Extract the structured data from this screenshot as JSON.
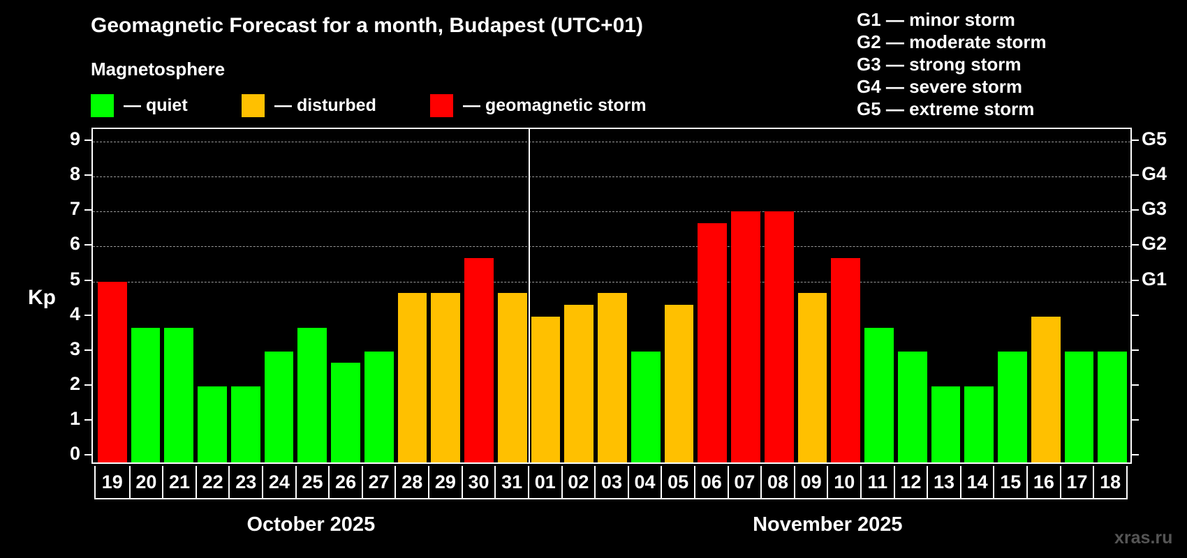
{
  "title": "Geomagnetic Forecast for a month, Budapest (UTC+01)",
  "legend": {
    "heading": "Magnetosphere",
    "items": [
      {
        "label": "— quiet",
        "color": "#00ff00"
      },
      {
        "label": "— disturbed",
        "color": "#ffc000"
      },
      {
        "label": "— geomagnetic storm",
        "color": "#ff0000"
      }
    ]
  },
  "storm_scale": [
    "G1 — minor storm",
    "G2 — moderate storm",
    "G3 — strong storm",
    "G4 — severe storm",
    "G5 — extreme storm"
  ],
  "y_axis": {
    "label": "Kp",
    "ticks": [
      "0",
      "1",
      "2",
      "3",
      "4",
      "5",
      "6",
      "7",
      "8",
      "9"
    ]
  },
  "right_axis": {
    "labels": [
      {
        "kp": 5,
        "label": "G1"
      },
      {
        "kp": 6,
        "label": "G2"
      },
      {
        "kp": 7,
        "label": "G3"
      },
      {
        "kp": 8,
        "label": "G4"
      },
      {
        "kp": 9,
        "label": "G5"
      }
    ]
  },
  "months": [
    {
      "label": "October 2025",
      "days": 13
    },
    {
      "label": "November 2025",
      "days": 18
    }
  ],
  "watermark": "xras.ru",
  "colors": {
    "quiet": "#00ff00",
    "disturbed": "#ffc000",
    "storm": "#ff0000",
    "background": "#000000"
  },
  "chart_data": {
    "type": "bar",
    "title": "Geomagnetic Forecast for a month, Budapest (UTC+01)",
    "xlabel": "",
    "ylabel": "Kp",
    "ylim": [
      0,
      9
    ],
    "grid": true,
    "categories": [
      "19",
      "20",
      "21",
      "22",
      "23",
      "24",
      "25",
      "26",
      "27",
      "28",
      "29",
      "30",
      "31",
      "01",
      "02",
      "03",
      "04",
      "05",
      "06",
      "07",
      "08",
      "09",
      "10",
      "11",
      "12",
      "13",
      "14",
      "15",
      "16",
      "17",
      "18"
    ],
    "values": [
      5,
      3.67,
      3.67,
      2,
      2,
      3,
      3.67,
      2.67,
      3,
      4.67,
      4.67,
      5.67,
      4.67,
      4,
      4.33,
      4.67,
      3,
      4.33,
      6.67,
      7,
      7,
      4.67,
      5.67,
      3.67,
      3,
      2,
      2,
      3,
      4,
      3,
      3
    ],
    "status": [
      "storm",
      "quiet",
      "quiet",
      "quiet",
      "quiet",
      "quiet",
      "quiet",
      "quiet",
      "quiet",
      "disturbed",
      "disturbed",
      "storm",
      "disturbed",
      "disturbed",
      "disturbed",
      "disturbed",
      "quiet",
      "disturbed",
      "storm",
      "storm",
      "storm",
      "disturbed",
      "storm",
      "quiet",
      "quiet",
      "quiet",
      "quiet",
      "quiet",
      "disturbed",
      "quiet",
      "quiet"
    ],
    "month_groups": [
      "October 2025",
      "November 2025"
    ],
    "secondary_axis": {
      "G1": 5,
      "G2": 6,
      "G3": 7,
      "G4": 8,
      "G5": 9
    },
    "legend": [
      "quiet",
      "disturbed",
      "geomagnetic storm"
    ]
  }
}
